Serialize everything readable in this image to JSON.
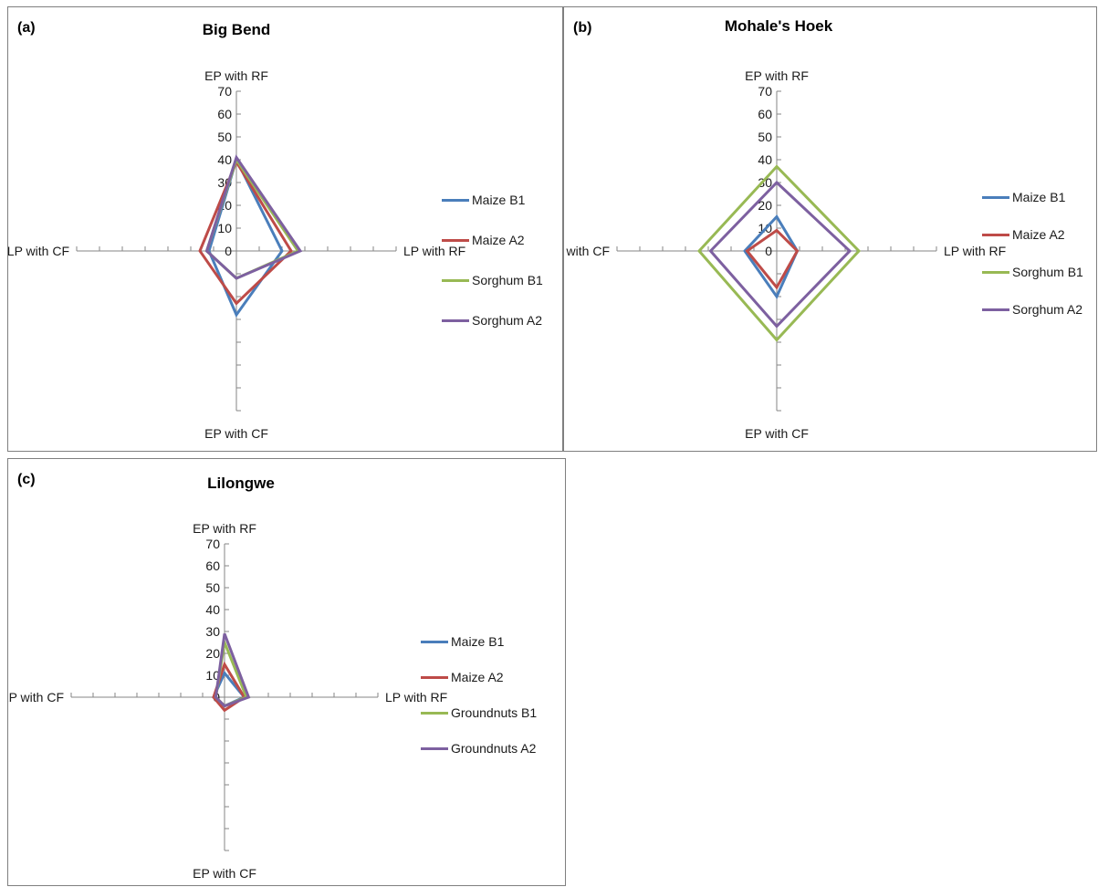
{
  "chart_data": [
    {
      "type": "radar",
      "panel_label": "(a)",
      "title": "Big Bend",
      "axes": [
        "EP with RF",
        "LP with RF",
        "EP with CF",
        "LP with CF"
      ],
      "rlim": [
        0,
        70
      ],
      "ticks": [
        0,
        10,
        20,
        30,
        40,
        50,
        60,
        70
      ],
      "legend_position": "right",
      "series": [
        {
          "name": "Maize B1",
          "color": "#4a7ebb",
          "values": [
            40,
            20,
            28,
            12
          ]
        },
        {
          "name": "Maize A2",
          "color": "#be4b48",
          "values": [
            39,
            24,
            23,
            16
          ]
        },
        {
          "name": "Sorghum B1",
          "color": "#98b954",
          "values": [
            40,
            27,
            12,
            13
          ]
        },
        {
          "name": "Sorghum A2",
          "color": "#7d60a0",
          "values": [
            41,
            28,
            12,
            13
          ]
        }
      ]
    },
    {
      "type": "radar",
      "panel_label": "(b)",
      "title": "Mohale's Hoek",
      "axes": [
        "EP with RF",
        "LP with RF",
        "EP with CF",
        "LP with CF"
      ],
      "rlim": [
        0,
        70
      ],
      "ticks": [
        0,
        10,
        20,
        30,
        40,
        50,
        60,
        70
      ],
      "legend_position": "right",
      "series": [
        {
          "name": "Maize B1",
          "color": "#4a7ebb",
          "values": [
            15,
            9,
            20,
            14
          ]
        },
        {
          "name": "Maize A2",
          "color": "#be4b48",
          "values": [
            9,
            9,
            16,
            13
          ]
        },
        {
          "name": "Sorghum B1",
          "color": "#98b954",
          "values": [
            37,
            36,
            39,
            34
          ]
        },
        {
          "name": "Sorghum A2",
          "color": "#7d60a0",
          "values": [
            30,
            32,
            33,
            29
          ]
        }
      ]
    },
    {
      "type": "radar",
      "panel_label": "(c)",
      "title": "Lilongwe",
      "axes": [
        "EP with RF",
        "LP with RF",
        "EP with CF",
        "LP with CF"
      ],
      "rlim": [
        0,
        70
      ],
      "ticks": [
        0,
        10,
        20,
        30,
        40,
        50,
        60,
        70
      ],
      "legend_position": "right",
      "series": [
        {
          "name": "Maize B1",
          "color": "#4a7ebb",
          "values": [
            11,
            9,
            4,
            5
          ]
        },
        {
          "name": "Maize A2",
          "color": "#be4b48",
          "values": [
            15,
            9,
            6,
            5
          ]
        },
        {
          "name": "Groundnuts B1",
          "color": "#98b954",
          "values": [
            25,
            10,
            4,
            4
          ]
        },
        {
          "name": "Groundnuts A2",
          "color": "#7d60a0",
          "values": [
            29,
            11,
            4,
            4
          ]
        }
      ]
    }
  ]
}
